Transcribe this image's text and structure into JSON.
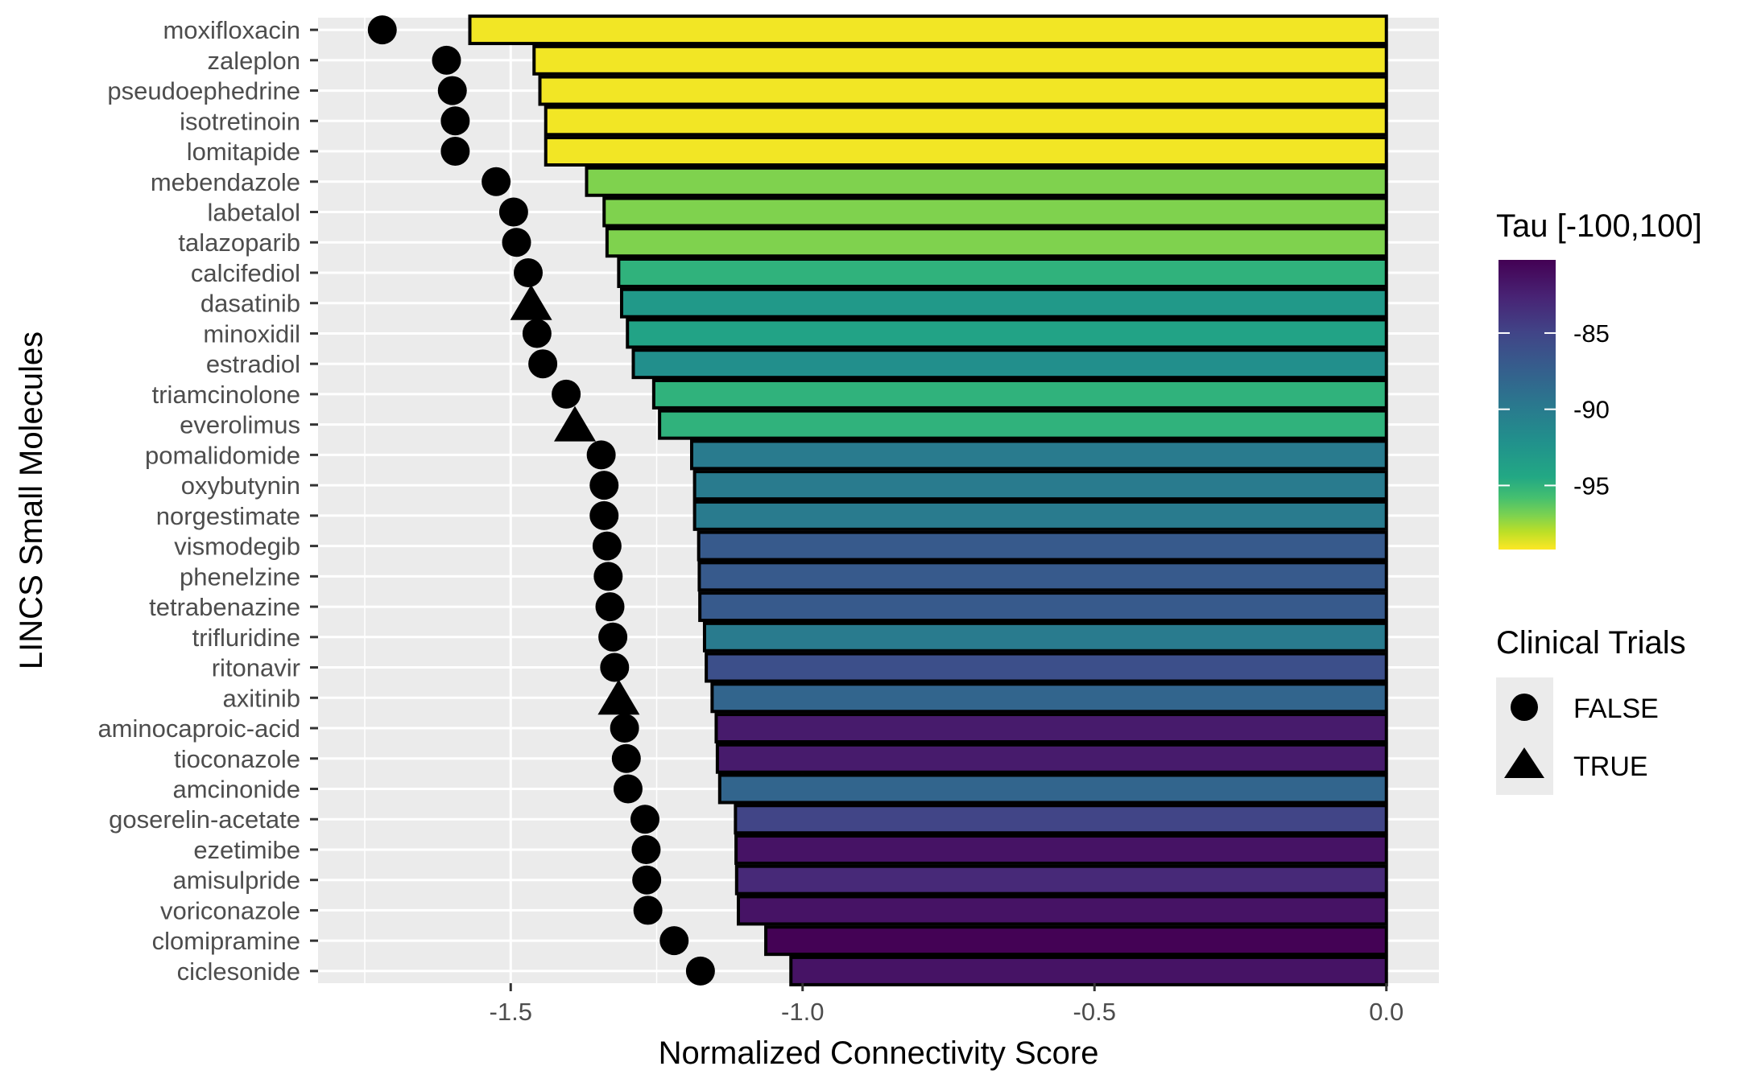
{
  "chart_data": {
    "type": "bar",
    "xlabel": "Normalized Connectivity Score",
    "ylabel": "LINCS Small Molecules",
    "xlim": [
      -1.83,
      0.09
    ],
    "x_ticks": [
      -1.5,
      -1.0,
      -0.5,
      0.0
    ],
    "x_tick_labels": [
      "-1.5",
      "-1.0",
      "-0.5",
      "0.0"
    ],
    "grid": true,
    "legend_position": "right",
    "colorbar": {
      "title": "Tau [-100,100]",
      "range": [
        -99.2,
        -80.2
      ],
      "ticks": [
        -85,
        -90,
        -95
      ],
      "tick_labels": [
        "-85",
        "-90",
        "-95"
      ],
      "colormap": "viridis",
      "low_color": "#fde725",
      "high_color": "#440154"
    },
    "shape_legend": {
      "title": "Clinical Trials",
      "entries": [
        {
          "label": "FALSE",
          "shape": "circle"
        },
        {
          "label": "TRUE",
          "shape": "triangle"
        }
      ]
    },
    "categories": [
      "moxifloxacin",
      "zaleplon",
      "pseudoephedrine",
      "isotretinoin",
      "lomitapide",
      "mebendazole",
      "labetalol",
      "talazoparib",
      "calcifediol",
      "dasatinib",
      "minoxidil",
      "estradiol",
      "triamcinolone",
      "everolimus",
      "pomalidomide",
      "oxybutynin",
      "norgestimate",
      "vismodegib",
      "phenelzine",
      "tetrabenazine",
      "trifluridine",
      "ritonavir",
      "axitinib",
      "aminocaproic-acid",
      "tioconazole",
      "amcinonide",
      "goserelin-acetate",
      "ezetimibe",
      "amisulpride",
      "voriconazole",
      "clomipramine",
      "ciclesonide"
    ],
    "values": [
      -1.57,
      -1.46,
      -1.45,
      -1.44,
      -1.44,
      -1.37,
      -1.34,
      -1.335,
      -1.315,
      -1.31,
      -1.3,
      -1.29,
      -1.255,
      -1.245,
      -1.19,
      -1.185,
      -1.185,
      -1.178,
      -1.177,
      -1.176,
      -1.168,
      -1.165,
      -1.155,
      -1.148,
      -1.146,
      -1.142,
      -1.115,
      -1.114,
      -1.113,
      -1.11,
      -1.063,
      -1.02
    ],
    "tau": [
      -99,
      -99,
      -99,
      -99,
      -99,
      -97,
      -97,
      -97,
      -95,
      -93,
      -94,
      -92,
      -95,
      -95,
      -90,
      -90,
      -90,
      -87,
      -87,
      -87,
      -90,
      -86,
      -88,
      -82,
      -82,
      -88,
      -85,
      -81.5,
      -83,
      -81.5,
      -80.3,
      -81.5
    ],
    "points": [
      -1.72,
      -1.61,
      -1.6,
      -1.595,
      -1.595,
      -1.525,
      -1.495,
      -1.49,
      -1.47,
      -1.465,
      -1.455,
      -1.445,
      -1.405,
      -1.39,
      -1.345,
      -1.34,
      -1.34,
      -1.335,
      -1.333,
      -1.33,
      -1.325,
      -1.322,
      -1.315,
      -1.305,
      -1.302,
      -1.299,
      -1.27,
      -1.268,
      -1.267,
      -1.265,
      -1.22,
      -1.175
    ],
    "clinical_trials": [
      false,
      false,
      false,
      false,
      false,
      false,
      false,
      false,
      false,
      true,
      false,
      false,
      false,
      true,
      false,
      false,
      false,
      false,
      false,
      false,
      false,
      false,
      true,
      false,
      false,
      false,
      false,
      false,
      false,
      false,
      false,
      false
    ]
  }
}
